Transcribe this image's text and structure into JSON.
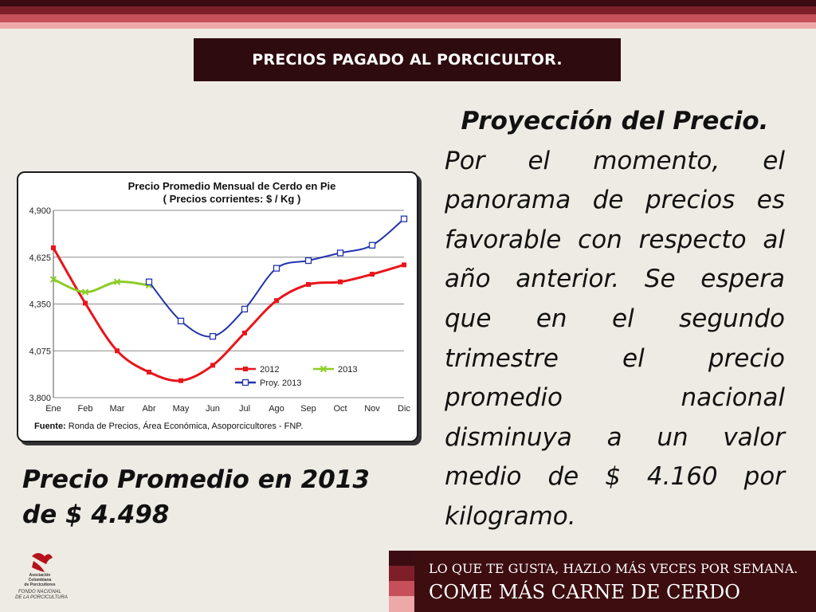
{
  "header": {
    "title": "PRECIOS PAGADO AL PORCICULTOR."
  },
  "right_panel": {
    "heading": "Proyección del Precio.",
    "paragraph": "Por el momento, el panorama de precios es favorable con respecto al año anterior. Se espera que en el segundo trimestre el precio promedio nacional disminuya a un valor medio de $ 4.160 por kilogramo."
  },
  "left_panel": {
    "line1": "Precio Promedio en 2013",
    "line2": "de $ 4.498"
  },
  "colors": {
    "stripe_dark": "#3b0d12",
    "stripe_red": "#c5505a",
    "stripe_pink": "#eea8a8",
    "accent": "#2e0b0e"
  },
  "chart_data": {
    "type": "line",
    "title": "Precio Promedio Mensual de Cerdo en Pie",
    "subtitle": "( Precios corrientes: $ / Kg )",
    "categories": [
      "Ene",
      "Feb",
      "Mar",
      "Abr",
      "May",
      "Jun",
      "Jul",
      "Ago",
      "Sep",
      "Oct",
      "Nov",
      "Dic"
    ],
    "ylim": [
      3800,
      4900
    ],
    "yticks": [
      "3,800",
      "4,075",
      "4,350",
      "4,625",
      "4,900"
    ],
    "series": [
      {
        "name": "2012",
        "color": "#e8151b",
        "marker": "square-filled",
        "values": [
          4680,
          4355,
          4075,
          3950,
          3900,
          3990,
          4180,
          4370,
          4465,
          4480,
          4525,
          4580
        ]
      },
      {
        "name": "2013",
        "color": "#8dcc28",
        "marker": "x",
        "values": [
          4495,
          4420,
          4480,
          4460,
          null,
          null,
          null,
          null,
          null,
          null,
          null,
          null
        ]
      },
      {
        "name": "Proy. 2013",
        "color": "#2233b0",
        "marker": "square-open",
        "values": [
          null,
          null,
          null,
          4480,
          4250,
          4160,
          4320,
          4560,
          4605,
          4650,
          4695,
          4850
        ]
      }
    ],
    "legend_position": "bottom-right",
    "grid": "horizontal",
    "source_label": "Fuente:",
    "source_text": " Ronda de Precios, Área Económica, Asoporcicultores - FNP."
  },
  "logo": {
    "line1": "Asociación",
    "line2": "Colombiana",
    "line3": "de Porcicultores",
    "line4": "FONDO NACIONAL",
    "line5": "DE LA PORCICULTURA"
  },
  "banner": {
    "line1": "LO QUE TE GUSTA, HAZLO MÁS VECES POR SEMANA.",
    "line2": "COME MÁS CARNE DE CERDO"
  }
}
